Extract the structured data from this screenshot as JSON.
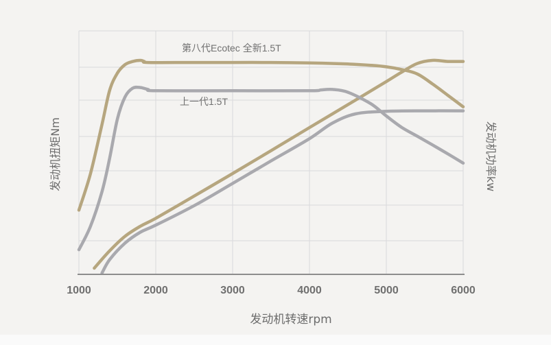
{
  "chart_data": {
    "type": "line",
    "xlabel": "发动机转速rpm",
    "ylabel_left": "发动机扭矩Nm",
    "ylabel_right": "发动机功率kw",
    "x_ticks": [
      1000,
      2000,
      3000,
      4000,
      5000,
      6000
    ],
    "xlim": [
      1000,
      6000
    ],
    "y_relative_range": [
      0,
      100
    ],
    "grid": true,
    "colors": {
      "new": "#b6a67f",
      "old": "#a9a9ae",
      "grid": "#d9d8dc",
      "axis": "#8d8d8d",
      "text": "#6f6f6f"
    },
    "series": [
      {
        "name": "第八代Ecotec 全新1.5T",
        "measure": "torque",
        "color": "#b6a67f",
        "x": [
          1000,
          1150,
          1300,
          1400,
          1500,
          1600,
          1700,
          1800,
          1850,
          1900,
          2500,
          3000,
          3500,
          4000,
          4500,
          4800,
          5000,
          5200,
          5400,
          5600,
          5800,
          6000
        ],
        "y": [
          30,
          47,
          70,
          86,
          94,
          98,
          99.5,
          100,
          99.5,
          99,
          99,
          99,
          99,
          98.8,
          98.3,
          97.7,
          97,
          95.7,
          93.7,
          89,
          83.7,
          78.3
        ]
      },
      {
        "name": "上一代1.5T",
        "measure": "torque",
        "color": "#a9a9ae",
        "x": [
          1000,
          1150,
          1300,
          1400,
          1500,
          1600,
          1700,
          1800,
          1900,
          2000,
          3000,
          4000,
          4150,
          4300,
          4500,
          4800,
          5000,
          5200,
          5400,
          5600,
          5800,
          6000
        ],
        "y": [
          11.5,
          22.4,
          38.6,
          54.3,
          72.5,
          82.9,
          87,
          87.3,
          86.4,
          85.8,
          85.8,
          85.8,
          86.2,
          86.4,
          85.1,
          79.7,
          74,
          68.7,
          64.6,
          60.5,
          56.3,
          52
        ]
      },
      {
        "measure": "power",
        "color": "#b6a67f",
        "x": [
          1200,
          1400,
          1600,
          1800,
          2000,
          2500,
          3000,
          3500,
          4000,
          4500,
          5000,
          5200,
          5400,
          5600,
          5800,
          6000
        ],
        "y": [
          2.9,
          11,
          17.8,
          22.5,
          26.2,
          36.6,
          47.1,
          57.8,
          68.6,
          79.3,
          90.1,
          94.5,
          98.5,
          100,
          99.5,
          99.5
        ]
      },
      {
        "measure": "power",
        "color": "#a9a9ae",
        "x": [
          1300,
          1400,
          1600,
          1800,
          2000,
          2500,
          3000,
          3500,
          4000,
          4300,
          4600,
          5000,
          5500,
          6000
        ],
        "y": [
          0.6,
          6.9,
          14.6,
          19.7,
          23,
          32.1,
          42.5,
          53,
          63.4,
          70.7,
          75,
          76.2,
          76.4,
          76.4
        ]
      }
    ]
  }
}
